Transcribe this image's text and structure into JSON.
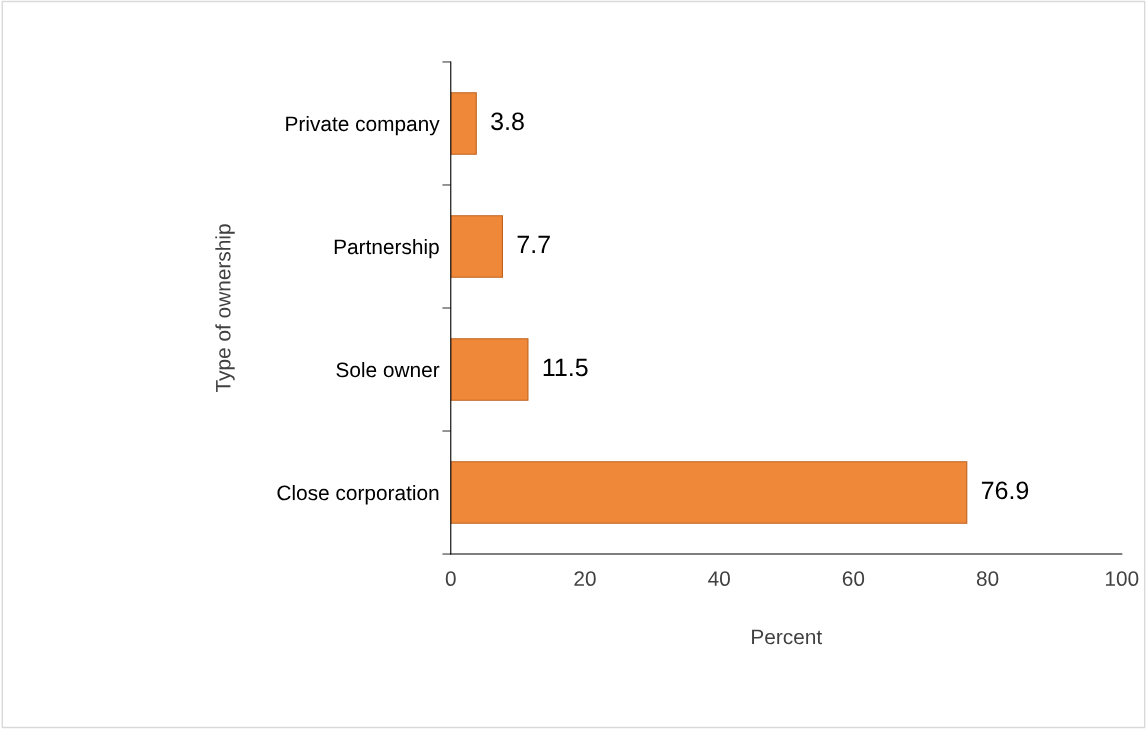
{
  "chart_data": {
    "type": "bar",
    "orientation": "horizontal",
    "categories": [
      "Private company",
      "Partnership",
      "Sole owner",
      "Close corporation"
    ],
    "values": [
      3.8,
      7.7,
      11.5,
      76.9
    ],
    "color": "#f0883a",
    "xlabel": "Percent",
    "ylabel": "Type of ownership",
    "xlim": [
      0,
      100
    ],
    "xticks": [
      0,
      20,
      40,
      60,
      80,
      100
    ],
    "data_labels": true,
    "grid": false,
    "legend": false
  }
}
